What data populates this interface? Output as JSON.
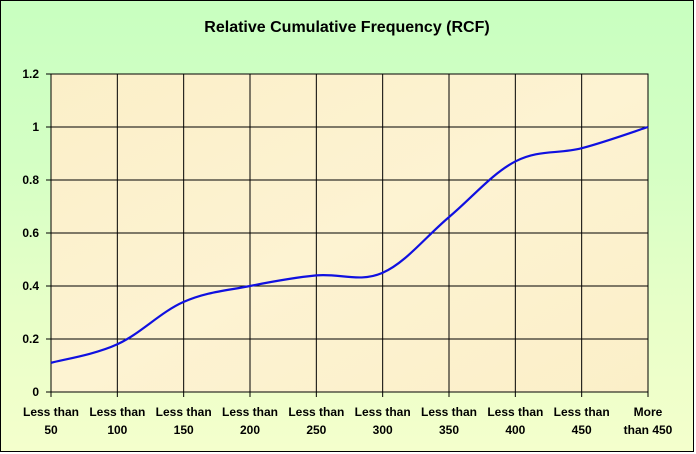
{
  "chart_data": {
    "type": "line",
    "title": "Relative Cumulative Frequency (RCF)",
    "xlabel": "",
    "ylabel": "",
    "categories": [
      [
        "Less than",
        "50"
      ],
      [
        "Less than",
        "100"
      ],
      [
        "Less than",
        "150"
      ],
      [
        "Less than",
        "200"
      ],
      [
        "Less than",
        "250"
      ],
      [
        "Less than",
        "300"
      ],
      [
        "Less than",
        "350"
      ],
      [
        "Less than",
        "400"
      ],
      [
        "Less than",
        "450"
      ],
      [
        "More",
        "than 450"
      ]
    ],
    "series": [
      {
        "name": "",
        "values": [
          0.11,
          0.18,
          0.34,
          0.4,
          0.44,
          0.45,
          0.66,
          0.87,
          0.92,
          1.0
        ]
      }
    ],
    "ylim": [
      0,
      1.2
    ],
    "yticks": [
      "0",
      "0.2",
      "0.4",
      "0.6",
      "0.8",
      "1",
      "1.2"
    ],
    "grid": true,
    "line_color": "#1010e0",
    "plot_background": "#fbf0cc"
  }
}
